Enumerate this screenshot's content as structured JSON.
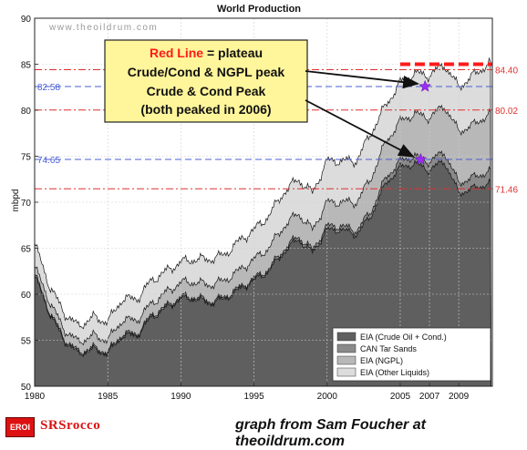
{
  "chart_data": {
    "type": "area",
    "title": "World Production",
    "watermark": "www.theoildrum.com",
    "xlabel": "",
    "ylabel": "mbpd",
    "xlim": [
      1980,
      2011.3
    ],
    "ylim": [
      50,
      90
    ],
    "x_ticks": [
      1980,
      1985,
      1990,
      1995,
      2000,
      2005,
      2007,
      2009
    ],
    "y_ticks": [
      50,
      55,
      60,
      65,
      70,
      75,
      80,
      85,
      90
    ],
    "grid": true,
    "legend_position": "bottom-right",
    "x": [
      1980,
      1981,
      1982,
      1983,
      1984,
      1985,
      1986,
      1987,
      1988,
      1989,
      1990,
      1991,
      1992,
      1993,
      1994,
      1995,
      1996,
      1997,
      1998,
      1999,
      2000,
      2001,
      2002,
      2003,
      2004,
      2005,
      2006,
      2007,
      2008,
      2009,
      2010,
      2011
    ],
    "series": [
      {
        "name": "EIA (Crude Oil + Cond.)",
        "color": "#5f5f5f",
        "values": [
          62.0,
          58.0,
          55.0,
          53.5,
          54.0,
          53.5,
          55.5,
          55.5,
          57.5,
          58.5,
          59.5,
          59.5,
          59.0,
          59.5,
          60.5,
          61.5,
          62.5,
          64.5,
          66.0,
          64.5,
          67.0,
          67.0,
          66.5,
          68.5,
          72.0,
          73.8,
          74.2,
          73.5,
          74.5,
          71.0,
          71.5,
          72.0
        ]
      },
      {
        "name": "CAN Tar Sands",
        "color": "#8a8a8a",
        "values": [
          62.2,
          58.2,
          55.2,
          53.7,
          54.2,
          53.7,
          55.7,
          55.7,
          57.7,
          58.7,
          59.7,
          59.7,
          59.2,
          59.7,
          60.7,
          61.7,
          62.7,
          64.8,
          66.3,
          64.8,
          67.4,
          67.4,
          66.9,
          69.0,
          72.6,
          74.5,
          75.0,
          74.4,
          75.5,
          72.1,
          72.7,
          73.3
        ]
      },
      {
        "name": "EIA (NGPL)",
        "color": "#b8b8b8",
        "values": [
          63.0,
          59.3,
          56.2,
          54.8,
          55.5,
          55.0,
          57.2,
          57.2,
          59.0,
          60.2,
          61.3,
          61.3,
          61.0,
          61.5,
          62.6,
          63.8,
          65.0,
          67.3,
          68.8,
          67.0,
          70.0,
          70.0,
          70.0,
          72.6,
          76.5,
          78.8,
          79.6,
          79.2,
          80.5,
          77.7,
          78.4,
          79.5
        ]
      },
      {
        "name": "EIA (Other Liquids)",
        "color": "#dcdcdc",
        "values": [
          65.5,
          61.0,
          58.0,
          56.5,
          57.5,
          57.0,
          59.5,
          59.5,
          61.5,
          62.5,
          63.5,
          63.8,
          63.8,
          64.3,
          65.8,
          67.0,
          68.5,
          71.0,
          72.5,
          71.0,
          74.5,
          74.5,
          74.5,
          77.5,
          80.5,
          83.0,
          84.0,
          83.8,
          85.0,
          82.5,
          83.8,
          85.0
        ]
      }
    ],
    "reference_lines": [
      {
        "value": 84.4,
        "label": "84.40",
        "side": "right",
        "color": "#e03030",
        "style": "dash-dot"
      },
      {
        "value": 82.58,
        "label": "82.58",
        "side": "left",
        "color": "#4a5fd6",
        "style": "dash"
      },
      {
        "value": 80.02,
        "label": "80.02",
        "side": "right",
        "color": "#e03030",
        "style": "dash-dot"
      },
      {
        "value": 74.65,
        "label": "74.65",
        "side": "left",
        "color": "#4a5fd6",
        "style": "dash"
      },
      {
        "value": 71.46,
        "label": "71.46",
        "side": "right",
        "color": "#e03030",
        "style": "dash-dot"
      }
    ],
    "plateau": {
      "x_start": 2005.0,
      "x_end": 2011.3,
      "value": 85.0,
      "color": "#ff1a1a"
    },
    "peak_markers": [
      {
        "x": 2006.7,
        "y": 82.58,
        "color": "#9b2cf2"
      },
      {
        "x": 2006.4,
        "y": 74.65,
        "color": "#9b2cf2"
      }
    ],
    "annotation": {
      "line1_highlight": "Red Line",
      "line1_rest": " = plateau",
      "line2": "Crude/Cond & NGPL peak",
      "line3": "Crude & Cond Peak",
      "line4": "(both peaked in 2006)",
      "box_color": "#fff59a",
      "highlight_color": "#ff1a1a"
    }
  },
  "footer": {
    "logo_badge": "EROI",
    "brand": "SRSrocco",
    "credit": "graph from Sam Foucher at theoildrum.com"
  }
}
